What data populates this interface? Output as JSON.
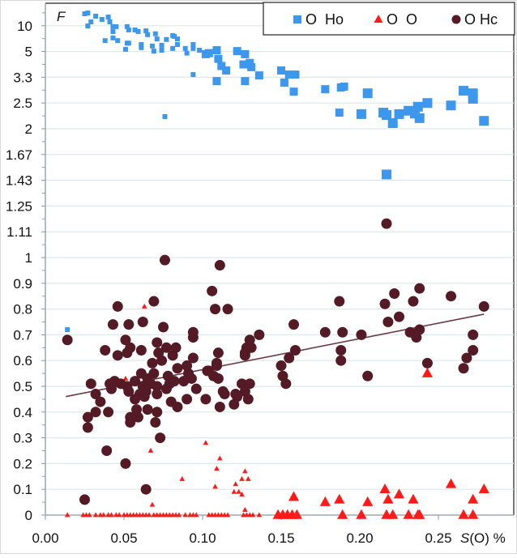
{
  "chart_data": {
    "type": "scatter",
    "y_axis_title": "F",
    "x_axis_title": {
      "italic": "S",
      "rest": "(O) %"
    },
    "x_ticks": [
      "0.00",
      "0.05",
      "0.10",
      "0.15",
      "0.20",
      "0.25"
    ],
    "x_tick_values": [
      0,
      0.05,
      0.1,
      0.15,
      0.2,
      0.25
    ],
    "xlim": [
      0,
      0.297
    ],
    "y_scale_note": "linear 0–1, then reciprocal (1/F) scale above 1",
    "y_ticks": [
      "0",
      "0.1",
      "0.2",
      "0.3",
      "0.4",
      "0.5",
      "0.6",
      "0.7",
      "0.8",
      "0.9",
      "1",
      "1.11",
      "1.25",
      "1.43",
      "1.67",
      "2",
      "2.5",
      "3.3",
      "5",
      "10"
    ],
    "grid": true,
    "legend_position": "top-right",
    "series": [
      {
        "name": "O  Ho",
        "marker": "square",
        "color": "#3d97ec",
        "points": [
          [
            0.025,
            21.2
          ],
          [
            0.027,
            22.7
          ],
          [
            0.029,
            12.7
          ],
          [
            0.027,
            10.6
          ],
          [
            0.032,
            17.7
          ],
          [
            0.036,
            14.5
          ],
          [
            0.04,
            16.7
          ],
          [
            0.041,
            12.7
          ],
          [
            0.043,
            10.3
          ],
          [
            0.045,
            10.3
          ],
          [
            0.043,
            8.6
          ],
          [
            0.038,
            6.6
          ],
          [
            0.043,
            7.1
          ],
          [
            0.046,
            6.6
          ],
          [
            0.052,
            10.3
          ],
          [
            0.053,
            9.1
          ],
          [
            0.057,
            9.1
          ],
          [
            0.059,
            8.6
          ],
          [
            0.064,
            8.8
          ],
          [
            0.065,
            7.8
          ],
          [
            0.07,
            8.0
          ],
          [
            0.071,
            6.9
          ],
          [
            0.052,
            6.2
          ],
          [
            0.053,
            6.2
          ],
          [
            0.051,
            5.4
          ],
          [
            0.061,
            6.0
          ],
          [
            0.061,
            5.6
          ],
          [
            0.068,
            5.8
          ],
          [
            0.069,
            5.2
          ],
          [
            0.074,
            5.9
          ],
          [
            0.074,
            5.3
          ],
          [
            0.077,
            6.8
          ],
          [
            0.081,
            7.6
          ],
          [
            0.082,
            7.4
          ],
          [
            0.084,
            6.9
          ],
          [
            0.081,
            5.5
          ],
          [
            0.084,
            6.0
          ],
          [
            0.089,
            5.5
          ],
          [
            0.09,
            5.0
          ],
          [
            0.094,
            6.0
          ],
          [
            0.094,
            5.5
          ],
          [
            0.098,
            5.3
          ],
          [
            0.102,
            4.9
          ],
          [
            0.094,
            3.53
          ],
          [
            0.076,
            2.24
          ],
          [
            0.104,
            5.0
          ],
          [
            0.109,
            5.3
          ],
          [
            0.11,
            4.5
          ],
          [
            0.112,
            4.0
          ],
          [
            0.109,
            3.24
          ],
          [
            0.115,
            3.74
          ],
          [
            0.122,
            5.2
          ],
          [
            0.127,
            4.9
          ],
          [
            0.126,
            4.1
          ],
          [
            0.13,
            4.2
          ],
          [
            0.131,
            3.93
          ],
          [
            0.127,
            3.24
          ],
          [
            0.136,
            3.49
          ],
          [
            0.15,
            3.74
          ],
          [
            0.152,
            3.18
          ],
          [
            0.155,
            3.53
          ],
          [
            0.159,
            3.53
          ],
          [
            0.158,
            2.86
          ],
          [
            0.178,
            2.94
          ],
          [
            0.188,
            3.0
          ],
          [
            0.19,
            3.03
          ],
          [
            0.205,
            2.81
          ],
          [
            0.187,
            2.32
          ],
          [
            0.201,
            2.29
          ],
          [
            0.215,
            2.32
          ],
          [
            0.217,
            2.27
          ],
          [
            0.221,
            2.12
          ],
          [
            0.225,
            2.29
          ],
          [
            0.231,
            2.36
          ],
          [
            0.235,
            2.3
          ],
          [
            0.237,
            2.45
          ],
          [
            0.238,
            2.21
          ],
          [
            0.243,
            2.54
          ],
          [
            0.258,
            2.48
          ],
          [
            0.266,
            2.89
          ],
          [
            0.272,
            2.81
          ],
          [
            0.272,
            2.65
          ],
          [
            0.279,
            2.16
          ],
          [
            0.217,
            1.49
          ],
          [
            0.014,
            0.72
          ]
        ]
      },
      {
        "name": "O  O",
        "marker": "triangle",
        "color": "#ff1a1a",
        "points": [
          [
            0.067,
            0.25
          ],
          [
            0.087,
            0.14
          ],
          [
            0.068,
            0.04
          ],
          [
            0.102,
            0.28
          ],
          [
            0.063,
            0.81
          ],
          [
            0.051,
            0.53
          ],
          [
            0.111,
            0.22
          ],
          [
            0.109,
            0.18
          ],
          [
            0.108,
            0.11
          ],
          [
            0.127,
            0.17
          ],
          [
            0.125,
            0.14
          ],
          [
            0.129,
            0.14
          ],
          [
            0.121,
            0.12
          ],
          [
            0.12,
            0.09
          ],
          [
            0.123,
            0.09
          ],
          [
            0.125,
            0.08
          ],
          [
            0.127,
            0.02
          ],
          [
            0.158,
            0.07
          ],
          [
            0.178,
            0.05
          ],
          [
            0.187,
            0.06
          ],
          [
            0.205,
            0.05
          ],
          [
            0.216,
            0.1
          ],
          [
            0.218,
            0.06
          ],
          [
            0.225,
            0.08
          ],
          [
            0.234,
            0.06
          ],
          [
            0.258,
            0.12
          ],
          [
            0.272,
            0.06
          ],
          [
            0.279,
            0.1
          ],
          [
            0.243,
            0.55
          ],
          [
            0.014,
            0
          ],
          [
            0.024,
            0
          ],
          [
            0.026,
            0
          ],
          [
            0.028,
            0
          ],
          [
            0.032,
            0
          ],
          [
            0.035,
            0
          ],
          [
            0.037,
            0
          ],
          [
            0.04,
            0
          ],
          [
            0.042,
            0
          ],
          [
            0.045,
            0
          ],
          [
            0.047,
            0
          ],
          [
            0.05,
            0
          ],
          [
            0.052,
            0
          ],
          [
            0.054,
            0
          ],
          [
            0.056,
            0
          ],
          [
            0.058,
            0
          ],
          [
            0.06,
            0
          ],
          [
            0.062,
            0
          ],
          [
            0.064,
            0
          ],
          [
            0.066,
            0
          ],
          [
            0.069,
            0
          ],
          [
            0.071,
            0
          ],
          [
            0.073,
            0
          ],
          [
            0.075,
            0
          ],
          [
            0.077,
            0
          ],
          [
            0.079,
            0
          ],
          [
            0.081,
            0
          ],
          [
            0.083,
            0
          ],
          [
            0.085,
            0
          ],
          [
            0.089,
            0
          ],
          [
            0.092,
            0
          ],
          [
            0.094,
            0
          ],
          [
            0.096,
            0
          ],
          [
            0.104,
            0
          ],
          [
            0.106,
            0
          ],
          [
            0.108,
            0
          ],
          [
            0.11,
            0
          ],
          [
            0.112,
            0
          ],
          [
            0.114,
            0
          ],
          [
            0.116,
            0
          ],
          [
            0.126,
            0
          ],
          [
            0.128,
            0
          ],
          [
            0.13,
            0
          ],
          [
            0.132,
            0
          ],
          [
            0.136,
            0
          ],
          [
            0.148,
            0
          ],
          [
            0.151,
            0
          ],
          [
            0.154,
            0
          ],
          [
            0.157,
            0
          ],
          [
            0.16,
            0
          ],
          [
            0.189,
            0
          ],
          [
            0.201,
            0
          ],
          [
            0.217,
            0
          ],
          [
            0.221,
            0
          ],
          [
            0.231,
            0
          ],
          [
            0.237,
            0
          ],
          [
            0.238,
            0
          ],
          [
            0.266,
            0
          ],
          [
            0.272,
            0
          ]
        ]
      },
      {
        "name": "O Hc",
        "marker": "circle",
        "color": "#541a25",
        "points": [
          [
            0.217,
            1.16
          ],
          [
            0.076,
            0.99
          ],
          [
            0.111,
            0.97
          ],
          [
            0.106,
            0.87
          ],
          [
            0.046,
            0.81
          ],
          [
            0.069,
            0.83
          ],
          [
            0.108,
            0.8
          ],
          [
            0.116,
            0.8
          ],
          [
            0.238,
            0.88
          ],
          [
            0.222,
            0.86
          ],
          [
            0.258,
            0.85
          ],
          [
            0.216,
            0.82
          ],
          [
            0.234,
            0.83
          ],
          [
            0.187,
            0.83
          ],
          [
            0.279,
            0.81
          ],
          [
            0.225,
            0.77
          ],
          [
            0.218,
            0.75
          ],
          [
            0.043,
            0.74
          ],
          [
            0.053,
            0.74
          ],
          [
            0.062,
            0.75
          ],
          [
            0.075,
            0.73
          ],
          [
            0.158,
            0.74
          ],
          [
            0.094,
            0.71
          ],
          [
            0.094,
            0.69
          ],
          [
            0.178,
            0.71
          ],
          [
            0.189,
            0.71
          ],
          [
            0.201,
            0.7
          ],
          [
            0.232,
            0.71
          ],
          [
            0.238,
            0.72
          ],
          [
            0.236,
            0.69
          ],
          [
            0.272,
            0.7
          ],
          [
            0.014,
            0.68
          ],
          [
            0.051,
            0.68
          ],
          [
            0.071,
            0.67
          ],
          [
            0.038,
            0.64
          ],
          [
            0.046,
            0.62
          ],
          [
            0.052,
            0.63
          ],
          [
            0.054,
            0.65
          ],
          [
            0.061,
            0.64
          ],
          [
            0.072,
            0.63
          ],
          [
            0.077,
            0.65
          ],
          [
            0.083,
            0.65
          ],
          [
            0.074,
            0.6
          ],
          [
            0.081,
            0.62
          ],
          [
            0.094,
            0.61
          ],
          [
            0.068,
            0.59
          ],
          [
            0.084,
            0.57
          ],
          [
            0.09,
            0.58
          ],
          [
            0.061,
            0.55
          ],
          [
            0.069,
            0.55
          ],
          [
            0.078,
            0.54
          ],
          [
            0.091,
            0.55
          ],
          [
            0.103,
            0.56
          ],
          [
            0.136,
            0.7
          ],
          [
            0.13,
            0.68
          ],
          [
            0.128,
            0.65
          ],
          [
            0.131,
            0.65
          ],
          [
            0.127,
            0.63
          ],
          [
            0.127,
            0.62
          ],
          [
            0.11,
            0.63
          ],
          [
            0.159,
            0.64
          ],
          [
            0.155,
            0.61
          ],
          [
            0.188,
            0.64
          ],
          [
            0.188,
            0.6
          ],
          [
            0.109,
            0.59
          ],
          [
            0.109,
            0.58
          ],
          [
            0.104,
            0.56
          ],
          [
            0.107,
            0.54
          ],
          [
            0.11,
            0.53
          ],
          [
            0.15,
            0.58
          ],
          [
            0.151,
            0.54
          ],
          [
            0.153,
            0.51
          ],
          [
            0.125,
            0.51
          ],
          [
            0.13,
            0.51
          ],
          [
            0.127,
            0.48
          ],
          [
            0.113,
            0.48
          ],
          [
            0.114,
            0.47
          ],
          [
            0.121,
            0.47
          ],
          [
            0.122,
            0.46
          ],
          [
            0.129,
            0.45
          ],
          [
            0.102,
            0.45
          ],
          [
            0.111,
            0.42
          ],
          [
            0.12,
            0.43
          ],
          [
            0.272,
            0.64
          ],
          [
            0.268,
            0.61
          ],
          [
            0.266,
            0.57
          ],
          [
            0.243,
            0.59
          ],
          [
            0.205,
            0.54
          ],
          [
            0.029,
            0.51
          ],
          [
            0.041,
            0.51
          ],
          [
            0.044,
            0.52
          ],
          [
            0.042,
            0.49
          ],
          [
            0.032,
            0.47
          ],
          [
            0.035,
            0.44
          ],
          [
            0.032,
            0.4
          ],
          [
            0.04,
            0.4
          ],
          [
            0.027,
            0.38
          ],
          [
            0.027,
            0.34
          ],
          [
            0.048,
            0.51
          ],
          [
            0.052,
            0.5
          ],
          [
            0.053,
            0.48
          ],
          [
            0.057,
            0.52
          ],
          [
            0.065,
            0.53
          ],
          [
            0.067,
            0.51
          ],
          [
            0.071,
            0.5
          ],
          [
            0.062,
            0.5
          ],
          [
            0.064,
            0.48
          ],
          [
            0.06,
            0.47
          ],
          [
            0.057,
            0.45
          ],
          [
            0.063,
            0.46
          ],
          [
            0.071,
            0.47
          ],
          [
            0.079,
            0.51
          ],
          [
            0.082,
            0.52
          ],
          [
            0.077,
            0.49
          ],
          [
            0.088,
            0.52
          ],
          [
            0.093,
            0.53
          ],
          [
            0.096,
            0.49
          ],
          [
            0.09,
            0.45
          ],
          [
            0.08,
            0.44
          ],
          [
            0.084,
            0.42
          ],
          [
            0.058,
            0.41
          ],
          [
            0.065,
            0.41
          ],
          [
            0.071,
            0.4
          ],
          [
            0.054,
            0.38
          ],
          [
            0.059,
            0.38
          ],
          [
            0.054,
            0.36
          ],
          [
            0.07,
            0.36
          ],
          [
            0.073,
            0.3
          ],
          [
            0.039,
            0.25
          ],
          [
            0.025,
            0.06
          ],
          [
            0.051,
            0.2
          ],
          [
            0.064,
            0.1
          ]
        ]
      }
    ],
    "trendline": {
      "series": "O Hc",
      "from": [
        0.013,
        0.46
      ],
      "to": [
        0.279,
        0.78
      ],
      "color": "#6b3a48"
    }
  }
}
